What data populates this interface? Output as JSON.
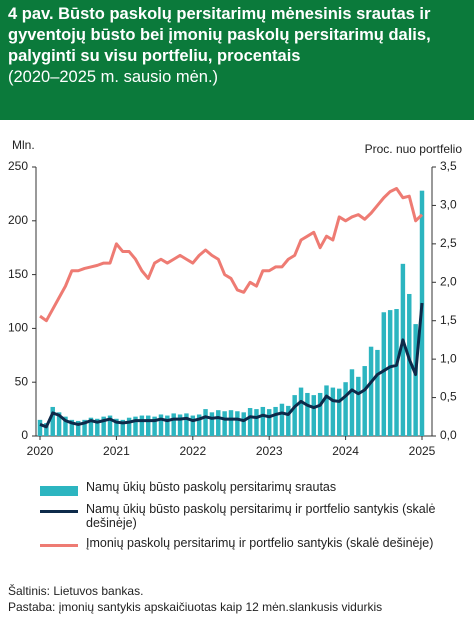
{
  "chart_data": {
    "type": "bar",
    "title": "4 pav. Būsto paskolų persitarimų mėnesinis srautas ir gyventojų būsto bei įmonių paskolų persitarimų dalis, palyginti su visu portfeliu, procentais",
    "subtitle": "(2020–2025 m. sausio mėn.)",
    "y_label": "Mln.",
    "y2_label": "Proc. nuo portfelio",
    "categories": [
      "2020",
      null,
      null,
      null,
      null,
      null,
      null,
      null,
      null,
      null,
      null,
      null,
      "2021",
      null,
      null,
      null,
      null,
      null,
      null,
      null,
      null,
      null,
      null,
      null,
      "2022",
      null,
      null,
      null,
      null,
      null,
      null,
      null,
      null,
      null,
      null,
      null,
      "2023",
      null,
      null,
      null,
      null,
      null,
      null,
      null,
      null,
      null,
      null,
      null,
      "2024",
      null,
      null,
      null,
      null,
      null,
      null,
      null,
      null,
      null,
      null,
      null,
      "2025"
    ],
    "ylim": [
      0,
      250
    ],
    "yticks": [
      0,
      50,
      100,
      150,
      200,
      250
    ],
    "y2lim": [
      0,
      3.5
    ],
    "y2ticks": [
      {
        "value": 0,
        "label": "0,0"
      },
      {
        "value": 0.5,
        "label": "0,5"
      },
      {
        "value": 1,
        "label": "1,0"
      },
      {
        "value": 1.5,
        "label": "1,5"
      },
      {
        "value": 2,
        "label": "2,0"
      },
      {
        "value": 2.5,
        "label": "2,5"
      },
      {
        "value": 3,
        "label": "3,0"
      },
      {
        "value": 3.5,
        "label": "3,5"
      }
    ],
    "series": [
      {
        "name": "Namų ūkių būsto paskolų persitarimų srautas",
        "type": "bar",
        "color": "#2cb5c0",
        "values": [
          15,
          12,
          27,
          22,
          18,
          15,
          14,
          15,
          17,
          16,
          18,
          19,
          16,
          15,
          17,
          18,
          19,
          19,
          18,
          20,
          19,
          21,
          20,
          21,
          19,
          20,
          25,
          22,
          24,
          23,
          24,
          23,
          22,
          26,
          25,
          27,
          25,
          27,
          30,
          28,
          38,
          45,
          40,
          38,
          40,
          47,
          45,
          44,
          50,
          62,
          55,
          65,
          83,
          80,
          115,
          117,
          118,
          160,
          132,
          104,
          228
        ]
      },
      {
        "name": "Namų ūkių būsto paskolų persitarimų ir portfelio santykis (skalė dešinėje)",
        "type": "line",
        "axis": "y2",
        "color": "#0d2a4a",
        "values": [
          0.15,
          0.12,
          0.3,
          0.27,
          0.2,
          0.17,
          0.15,
          0.17,
          0.2,
          0.18,
          0.2,
          0.22,
          0.18,
          0.17,
          0.18,
          0.2,
          0.2,
          0.2,
          0.2,
          0.22,
          0.2,
          0.22,
          0.22,
          0.23,
          0.2,
          0.22,
          0.25,
          0.23,
          0.24,
          0.22,
          0.22,
          0.22,
          0.2,
          0.25,
          0.24,
          0.27,
          0.25,
          0.28,
          0.3,
          0.28,
          0.38,
          0.45,
          0.4,
          0.37,
          0.4,
          0.52,
          0.46,
          0.45,
          0.52,
          0.6,
          0.55,
          0.6,
          0.7,
          0.8,
          0.85,
          0.9,
          0.92,
          1.25,
          1.0,
          0.8,
          1.73
        ]
      },
      {
        "name": "Įmonių paskolų persitarimų ir portfelio santykis (skalė dešinėje)",
        "type": "line",
        "axis": "y2",
        "color": "#ee7b73",
        "values": [
          1.56,
          1.5,
          1.65,
          1.8,
          1.95,
          2.15,
          2.15,
          2.18,
          2.2,
          2.22,
          2.25,
          2.25,
          2.5,
          2.4,
          2.4,
          2.3,
          2.15,
          2.05,
          2.25,
          2.3,
          2.25,
          2.3,
          2.35,
          2.3,
          2.25,
          2.35,
          2.42,
          2.35,
          2.3,
          2.1,
          2.05,
          1.9,
          1.87,
          2.0,
          1.95,
          2.15,
          2.15,
          2.2,
          2.2,
          2.3,
          2.35,
          2.55,
          2.6,
          2.65,
          2.45,
          2.6,
          2.55,
          2.85,
          2.8,
          2.85,
          2.88,
          2.82,
          2.9,
          3.0,
          3.1,
          3.18,
          3.22,
          3.1,
          3.12,
          2.8,
          2.88
        ]
      }
    ],
    "source": "Šaltinis: Lietuvos bankas.",
    "note": "Pastaba: įmonių santykis apskaičiuotas kaip 12 mėn.slankusis vidurkis"
  }
}
